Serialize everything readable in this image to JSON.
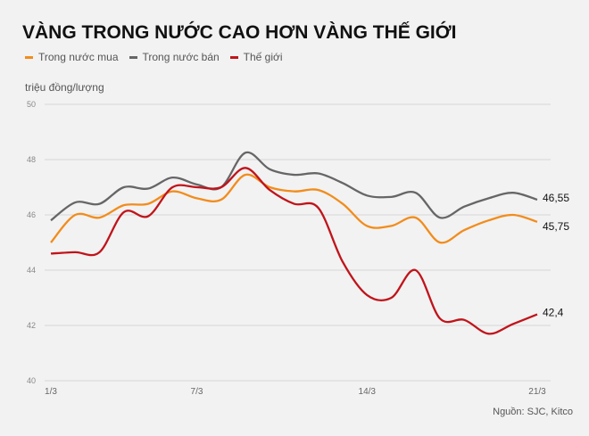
{
  "chart_data": {
    "type": "line",
    "title": "VÀNG TRONG NƯỚC CAO HƠN VÀNG THẾ GIỚI",
    "ylabel": "triệu đồng/lượng",
    "xlabel": "",
    "source": "Nguồn: SJC, Kitco",
    "ylim": [
      40,
      50
    ],
    "yticks": [
      "40",
      "42",
      "44",
      "46",
      "48",
      "50"
    ],
    "x": [
      "1/3",
      "2/3",
      "3/3",
      "4/3",
      "5/3",
      "6/3",
      "7/3",
      "8/3",
      "9/3",
      "10/3",
      "11/3",
      "12/3",
      "13/3",
      "14/3",
      "15/3",
      "16/3",
      "17/3",
      "18/3",
      "19/3",
      "20/3",
      "21/3"
    ],
    "xticks": [
      "1/3",
      "7/3",
      "14/3",
      "21/3"
    ],
    "grid": true,
    "legend": "top-left",
    "series": [
      {
        "name": "Trong nước mua",
        "color": "#f28c1c",
        "end_label": "45,75",
        "values": [
          45.0,
          46.0,
          45.9,
          46.35,
          46.4,
          46.85,
          46.6,
          46.55,
          47.45,
          47.0,
          46.85,
          46.9,
          46.4,
          45.6,
          45.6,
          45.9,
          45.0,
          45.45,
          45.8,
          46.0,
          45.75
        ]
      },
      {
        "name": "Trong nước bán",
        "color": "#666666",
        "end_label": "46,55",
        "values": [
          45.8,
          46.45,
          46.4,
          47.0,
          46.95,
          47.35,
          47.1,
          47.0,
          48.25,
          47.65,
          47.45,
          47.5,
          47.15,
          46.7,
          46.65,
          46.8,
          45.9,
          46.3,
          46.6,
          46.8,
          46.55
        ]
      },
      {
        "name": "Thế giới",
        "color": "#c0141b",
        "end_label": "42,4",
        "values": [
          44.6,
          44.65,
          44.65,
          46.1,
          45.95,
          47.0,
          47.0,
          47.0,
          47.7,
          46.9,
          46.4,
          46.25,
          44.3,
          43.1,
          43.0,
          44.0,
          42.25,
          42.2,
          41.7,
          42.05,
          42.4
        ]
      }
    ]
  }
}
